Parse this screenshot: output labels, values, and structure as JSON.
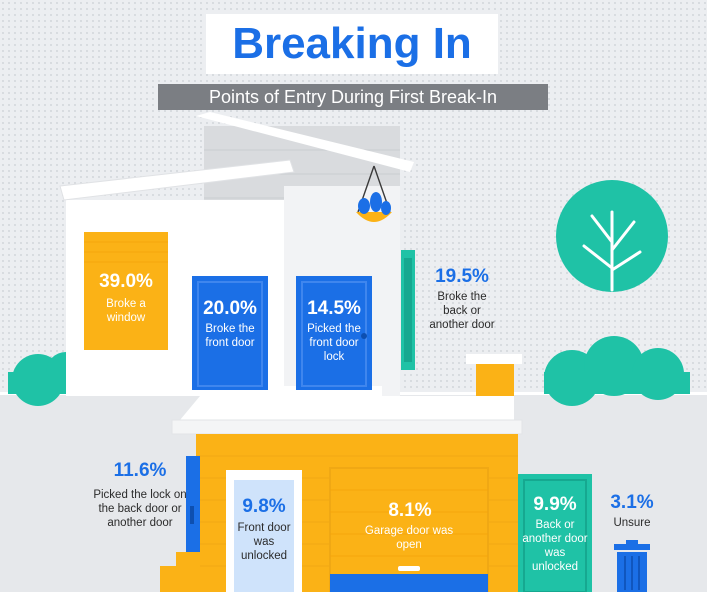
{
  "title": "Breaking In",
  "subtitle": "Points of Entry During First Break-In",
  "colors": {
    "accent_blue": "#1b6fe6",
    "orange": "#fbb216",
    "teal": "#1fc2a6",
    "gray_banner": "#7b7e83"
  },
  "chart_data": {
    "type": "infographic-bar",
    "title": "Breaking In",
    "subtitle": "Points of Entry During First Break-In",
    "unit": "%",
    "items": [
      {
        "value": 39.0,
        "pct_label": "39.0%",
        "label": "Broke a window"
      },
      {
        "value": 20.0,
        "pct_label": "20.0%",
        "label": "Broke the front door"
      },
      {
        "value": 14.5,
        "pct_label": "14.5%",
        "label": "Picked the front door lock"
      },
      {
        "value": 19.5,
        "pct_label": "19.5%",
        "label": "Broke the back or another door"
      },
      {
        "value": 11.6,
        "pct_label": "11.6%",
        "label": "Picked the lock on the back door or another door"
      },
      {
        "value": 9.8,
        "pct_label": "9.8%",
        "label": "Front door was unlocked"
      },
      {
        "value": 8.1,
        "pct_label": "8.1%",
        "label": "Garage door was open"
      },
      {
        "value": 9.9,
        "pct_label": "9.9%",
        "label": "Back or another door was unlocked"
      },
      {
        "value": 3.1,
        "pct_label": "3.1%",
        "label": "Unsure"
      }
    ]
  }
}
